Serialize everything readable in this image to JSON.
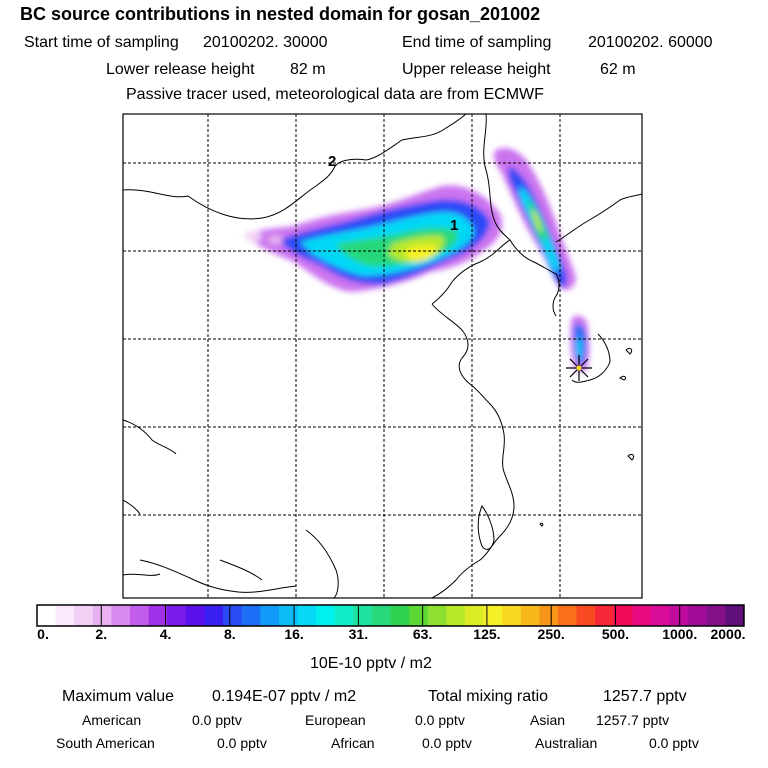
{
  "header": {
    "title": "BC  source contributions in nested domain for gosan_201002",
    "start_label": "Start time of sampling",
    "start_value": "20100202. 30000",
    "end_label": "End time of sampling",
    "end_value": "20100202. 60000",
    "lower_label": "Lower release height",
    "lower_value": "82 m",
    "upper_label": "Upper release height",
    "upper_value": "62 m",
    "tracer_note": "Passive tracer used, meteorological data are from ECMWF"
  },
  "map": {
    "contour_labels": [
      "1",
      "2"
    ],
    "receptor_marker": "star-marker"
  },
  "colorbar": {
    "colors": [
      "#ffffff",
      "#fbe8fb",
      "#f2d0f5",
      "#e8b2f0",
      "#d68aee",
      "#c25cec",
      "#a232ea",
      "#7a1ae8",
      "#5a10ea",
      "#3a20f0",
      "#2a4cf6",
      "#1c70f8",
      "#129af8",
      "#0cbcf8",
      "#06d8f6",
      "#00f0f0",
      "#10ecc8",
      "#1ee2a0",
      "#28d87a",
      "#30d050",
      "#5cd836",
      "#8ee030",
      "#b8e82a",
      "#dcec26",
      "#f4f028",
      "#f8d820",
      "#f8b81c",
      "#f8961a",
      "#f87018",
      "#f84a22",
      "#f8283a",
      "#f00a5a",
      "#e80a80",
      "#d80c98",
      "#c00c9e",
      "#a00c96",
      "#84108a",
      "#60107a"
    ],
    "tick_labels": [
      "0.",
      "2.",
      "4.",
      "8.",
      "16.",
      "31.",
      "63.",
      "125.",
      "250.",
      "500.",
      "1000.",
      "2000."
    ],
    "units": "10E-10 pptv / m2"
  },
  "stats": {
    "max_label": "Maximum value",
    "max_value": "0.194E-07 pptv / m2",
    "total_label": "Total mixing ratio",
    "total_value": "1257.7 pptv",
    "american_label": "American",
    "american_value": "0.0 pptv",
    "european_label": "European",
    "european_value": "0.0 pptv",
    "asian_label": "Asian",
    "asian_value": "1257.7 pptv",
    "south_american_label": "South American",
    "south_american_value": "0.0 pptv",
    "african_label": "African",
    "african_value": "0.0 pptv",
    "australian_label": "Australian",
    "australian_value": "0.0 pptv"
  }
}
